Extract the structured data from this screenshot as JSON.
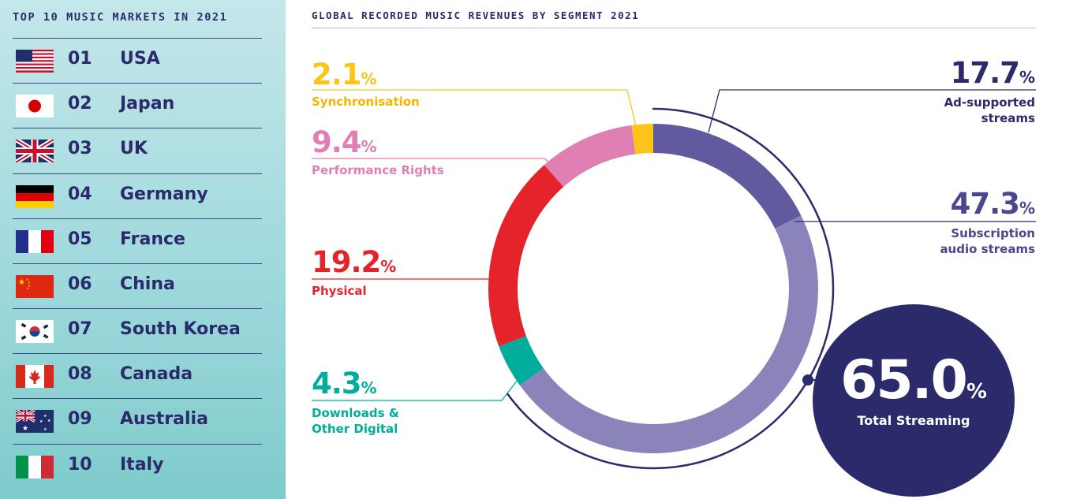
{
  "markets": {
    "title": "TOP 10 MUSIC MARKETS IN 2021",
    "items": [
      {
        "rank": "01",
        "name": "USA",
        "flag": "usa-flag-icon"
      },
      {
        "rank": "02",
        "name": "Japan",
        "flag": "japan-flag-icon"
      },
      {
        "rank": "03",
        "name": "UK",
        "flag": "uk-flag-icon"
      },
      {
        "rank": "04",
        "name": "Germany",
        "flag": "germany-flag-icon"
      },
      {
        "rank": "05",
        "name": "France",
        "flag": "france-flag-icon"
      },
      {
        "rank": "06",
        "name": "China",
        "flag": "china-flag-icon"
      },
      {
        "rank": "07",
        "name": "South Korea",
        "flag": "south-korea-flag-icon"
      },
      {
        "rank": "08",
        "name": "Canada",
        "flag": "canada-flag-icon"
      },
      {
        "rank": "09",
        "name": "Australia",
        "flag": "australia-flag-icon"
      },
      {
        "rank": "10",
        "name": "Italy",
        "flag": "italy-flag-icon"
      }
    ]
  },
  "chart_data": {
    "type": "pie",
    "title": "GLOBAL RECORDED MUSIC REVENUES BY SEGMENT 2021",
    "unit": "%",
    "slices": [
      {
        "name": "Ad-supported streams",
        "value": 17.7,
        "display": "17.7",
        "color": "#615a9f"
      },
      {
        "name": "Subscription audio streams",
        "value": 47.3,
        "display": "47.3",
        "color": "#8a84ba"
      },
      {
        "name": "Downloads & Other Digital",
        "value": 4.3,
        "display": "4.3",
        "color": "#00ad9c"
      },
      {
        "name": "Physical",
        "value": 19.2,
        "display": "19.2",
        "color": "#e5232a"
      },
      {
        "name": "Performance Rights",
        "value": 9.4,
        "display": "9.4",
        "color": "#df7fb4"
      },
      {
        "name": "Synchronisation",
        "value": 2.1,
        "display": "2.1",
        "color": "#fcc419"
      }
    ],
    "total_streaming": {
      "value": "65.0",
      "label": "Total Streaming",
      "color": "#2b2a6b"
    }
  },
  "labels": {
    "synchronisation": {
      "value": "2.1",
      "name": "Synchronisation"
    },
    "performance_rights": {
      "value": "9.4",
      "name": "Performance Rights"
    },
    "physical": {
      "value": "19.2",
      "name": "Physical"
    },
    "downloads": {
      "value": "4.3",
      "name_line1": "Downloads &",
      "name_line2": "Other Digital"
    },
    "ad_supported": {
      "value": "17.7",
      "name_line1": "Ad-supported",
      "name_line2": "streams"
    },
    "subscription": {
      "value": "47.3",
      "name_line1": "Subscription",
      "name_line2": "audio streams"
    },
    "percent_sign": "%"
  }
}
